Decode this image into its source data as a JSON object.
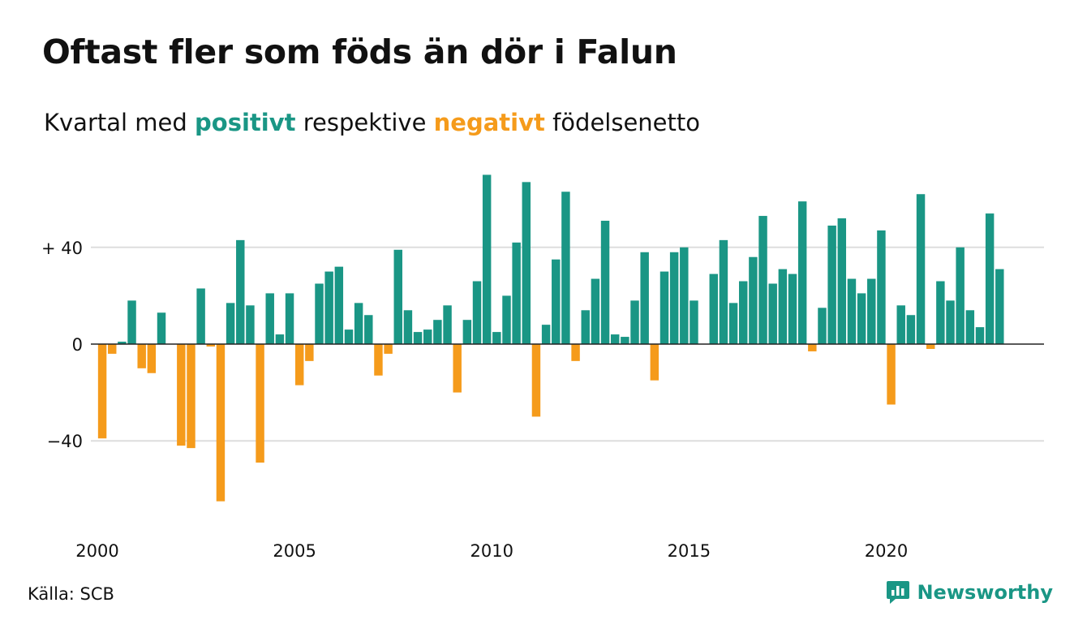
{
  "title": "Oftast fler som föds än dör i Falun",
  "subtitle": {
    "prefix": "Kvartal med",
    "positive_word": "positivt",
    "middle": "respektive",
    "negative_word": "negativt",
    "suffix": "födelsenetto"
  },
  "source": "Källa: SCB",
  "brand": {
    "name": "Newsworthy",
    "icon": "newsworthy-logo-icon"
  },
  "colors": {
    "positive": "#1a9685",
    "negative": "#f59b1b",
    "text": "#111111",
    "grid": "#dddddd",
    "axis": "#222222"
  },
  "chart_data": {
    "type": "bar",
    "title": "Oftast fler som föds än dör i Falun",
    "xlabel": "",
    "ylabel": "",
    "x_start": 2000,
    "x_end": 2023,
    "quarters_per_year": 4,
    "ylim": [
      -70,
      72
    ],
    "yticks": [
      {
        "value": 40,
        "label": "+ 40"
      },
      {
        "value": 0,
        "label": "0"
      },
      {
        "value": -40,
        "label": "−40"
      }
    ],
    "xticks": [
      "2000",
      "2005",
      "2010",
      "2015",
      "2020"
    ],
    "grid": true,
    "values": [
      -39,
      -4,
      1,
      18,
      -10,
      -12,
      13,
      0,
      -42,
      -43,
      23,
      -1,
      -65,
      17,
      43,
      16,
      -49,
      21,
      4,
      21,
      -17,
      -7,
      25,
      30,
      32,
      6,
      17,
      12,
      -13,
      -4,
      39,
      14,
      5,
      6,
      10,
      16,
      -20,
      10,
      26,
      70,
      5,
      20,
      42,
      67,
      -30,
      8,
      35,
      63,
      -7,
      14,
      27,
      51,
      4,
      3,
      18,
      38,
      -15,
      30,
      38,
      40,
      18,
      0,
      29,
      43,
      17,
      26,
      36,
      53,
      25,
      31,
      29,
      59,
      -3,
      15,
      49,
      52,
      27,
      21,
      27,
      47,
      -25,
      16,
      12,
      62,
      -2,
      26,
      18,
      40,
      14,
      7,
      54,
      31
    ]
  }
}
